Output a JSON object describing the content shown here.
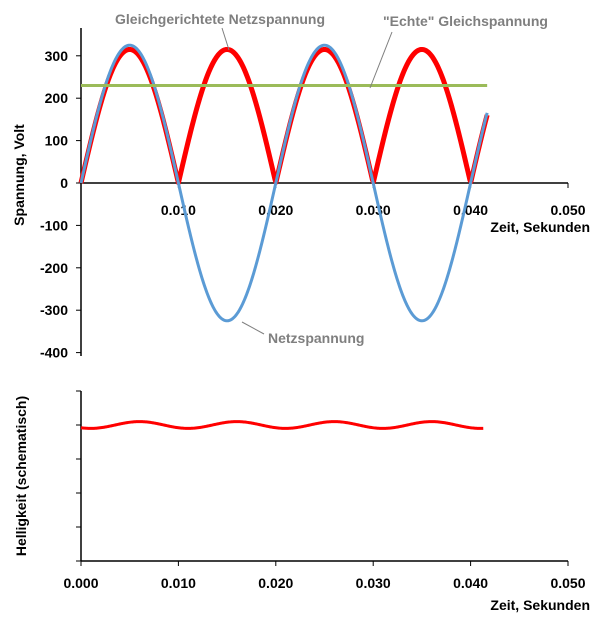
{
  "chart_data": [
    {
      "type": "line",
      "title": "",
      "xlabel": "Zeit, Sekunden",
      "ylabel": "Spannung, Volt",
      "xlim": [
        0,
        0.05
      ],
      "ylim": [
        -400,
        300
      ],
      "x_ticks": [
        "0.010",
        "0.020",
        "0.030",
        "0.040",
        "0.050"
      ],
      "y_ticks": [
        "300",
        "200",
        "100",
        "0",
        "-100",
        "-200",
        "-300",
        "-400"
      ],
      "grid": false,
      "x_end": 0.0417,
      "series": [
        {
          "name": "Gleichgerichtete Netzspannung",
          "kind": "rectified-sine",
          "peak": 315,
          "frequency_hz": 50,
          "color": "#ff0000"
        },
        {
          "name": "Netzspannung",
          "kind": "sine",
          "peak": 325,
          "frequency_hz": 50,
          "color": "#5b9bd5"
        },
        {
          "name": "\"Echte\" Gleichspannung",
          "kind": "constant",
          "value": 230,
          "color": "#9bbb59"
        }
      ],
      "annotations": [
        "Gleichgerichtete Netzspannung",
        "\"Echte\" Gleichspannung",
        "Netzspannung"
      ]
    },
    {
      "type": "line",
      "title": "",
      "xlabel": "Zeit, Sekunden",
      "ylabel": "Helligkeit (schematisch)",
      "xlim": [
        0,
        0.05
      ],
      "ylim": [
        0,
        5
      ],
      "x_ticks": [
        "0.000",
        "0.010",
        "0.020",
        "0.030",
        "0.040",
        "0.050"
      ],
      "grid": false,
      "x_end": 0.0413,
      "series": [
        {
          "name": "Helligkeit",
          "kind": "ripple",
          "mean": 4,
          "amplitude": 0.1,
          "frequency_hz": 100,
          "peak_time": 0.006,
          "color": "#ff0000"
        }
      ]
    }
  ]
}
